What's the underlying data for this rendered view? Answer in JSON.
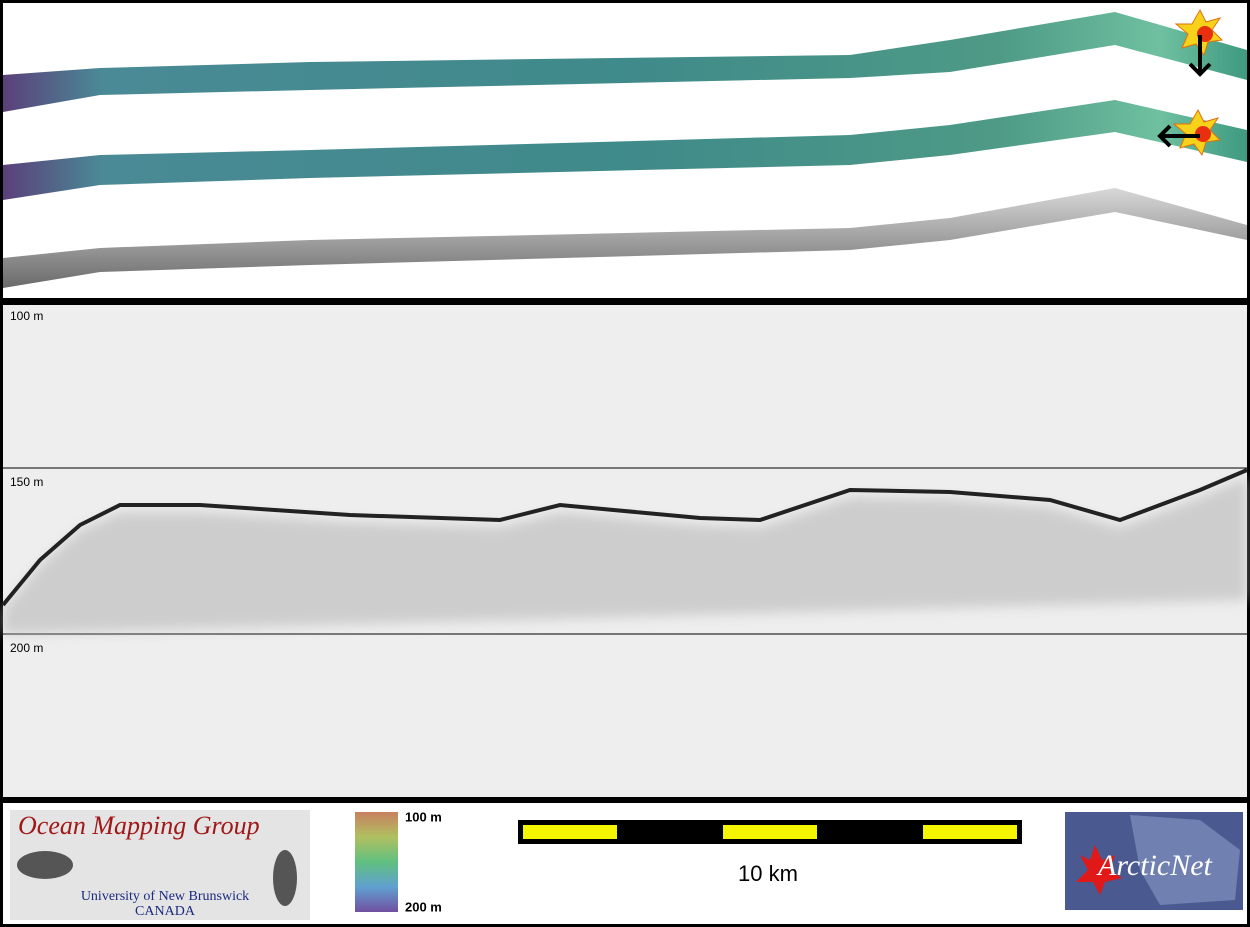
{
  "profile": {
    "depth_labels": [
      "100 m",
      "150 m",
      "200 m"
    ]
  },
  "footer": {
    "logo_left": {
      "title": "Ocean Mapping Group",
      "line1": "University of New Brunswick",
      "line2": "CANADA"
    },
    "colorbar": {
      "top_label": "100 m",
      "bottom_label": "200 m"
    },
    "scale_bar": {
      "label": "10 km"
    },
    "logo_right": {
      "title": "ArcticNet"
    }
  }
}
